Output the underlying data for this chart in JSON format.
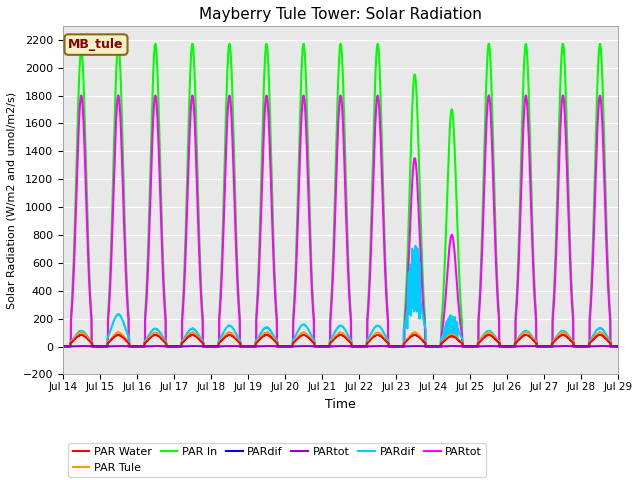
{
  "title": "Mayberry Tule Tower: Solar Radiation",
  "xlabel": "Time",
  "ylabel": "Solar Radiation (W/m2 and umol/m2/s)",
  "xlim_days": [
    14,
    29
  ],
  "ylim": [
    -200,
    2300
  ],
  "yticks": [
    -200,
    0,
    200,
    400,
    600,
    800,
    1000,
    1200,
    1400,
    1600,
    1800,
    2000,
    2200
  ],
  "xtick_labels": [
    "Jul 14",
    "Jul 15",
    "Jul 16",
    "Jul 17",
    "Jul 18",
    "Jul 19",
    "Jul 20",
    "Jul 21",
    "Jul 22",
    "Jul 23",
    "Jul 24",
    "Jul 25",
    "Jul 26",
    "Jul 27",
    "Jul 28",
    "Jul 29"
  ],
  "bg_color": "#e8e8e8",
  "legend_label": "MB_tule",
  "legend_bg": "#f5f0c8",
  "legend_border": "#8B6914",
  "series": [
    {
      "label": "PAR Water",
      "color": "#ff0000",
      "lw": 1.2
    },
    {
      "label": "PAR Tule",
      "color": "#ff9900",
      "lw": 1.2
    },
    {
      "label": "PAR In",
      "color": "#00ff00",
      "lw": 1.5
    },
    {
      "label": "PARdif",
      "color": "#0000ff",
      "lw": 1.2
    },
    {
      "label": "PARtot",
      "color": "#9900cc",
      "lw": 1.2
    },
    {
      "label": "PARdif",
      "color": "#00ccff",
      "lw": 1.5
    },
    {
      "label": "PARtot",
      "color": "#ff00ff",
      "lw": 1.5
    }
  ],
  "day_peaks": {
    "par_in": [
      2120,
      2170,
      2170,
      2170,
      2170,
      2170,
      2170,
      2170,
      2170,
      1950,
      1700,
      2170,
      2170,
      2170,
      2170
    ],
    "par_mag": [
      1800,
      1800,
      1800,
      1800,
      1800,
      1800,
      1800,
      1800,
      1800,
      1350,
      800,
      1800,
      1800,
      1800,
      1800
    ],
    "par_water": [
      90,
      90,
      90,
      90,
      90,
      90,
      90,
      90,
      90,
      90,
      80,
      90,
      90,
      90,
      90
    ],
    "par_tule": [
      100,
      100,
      100,
      100,
      100,
      100,
      100,
      100,
      100,
      100,
      85,
      100,
      100,
      100,
      100
    ],
    "par_cyan": [
      130,
      270,
      150,
      150,
      175,
      160,
      185,
      175,
      175,
      550,
      220,
      130,
      130,
      130,
      155
    ]
  }
}
